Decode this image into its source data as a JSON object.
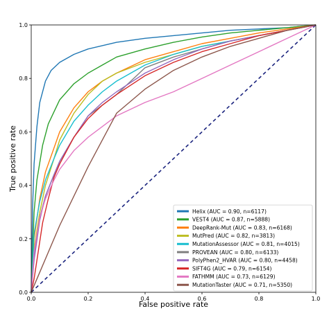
{
  "chart_data": {
    "type": "line",
    "title": "",
    "xlabel": "False positive rate",
    "ylabel": "True positive rate",
    "xlim": [
      0,
      1
    ],
    "ylim": [
      0,
      1
    ],
    "xticks": [
      "0.0",
      "0.2",
      "0.4",
      "0.6",
      "0.8",
      "1.0"
    ],
    "yticks": [
      "0.0",
      "0.2",
      "0.4",
      "0.6",
      "0.8",
      "1.0"
    ],
    "grid": false,
    "legend_position": "lower-right",
    "diagonal": {
      "color": "#1a237e",
      "style": "dashed",
      "x": [
        0,
        1
      ],
      "y": [
        0,
        1
      ]
    },
    "series": [
      {
        "name": "Helix (AUC = 0.90, n=6117)",
        "color": "#1f77b4",
        "x": [
          0,
          0.005,
          0.01,
          0.02,
          0.03,
          0.05,
          0.07,
          0.1,
          0.15,
          0.2,
          0.3,
          0.4,
          0.5,
          0.6,
          0.7,
          0.8,
          0.9,
          1.0
        ],
        "y": [
          0,
          0.32,
          0.48,
          0.62,
          0.71,
          0.79,
          0.83,
          0.86,
          0.89,
          0.91,
          0.935,
          0.95,
          0.96,
          0.97,
          0.98,
          0.985,
          0.99,
          1.0
        ]
      },
      {
        "name": "VEST4 (AUC = 0.87, n=5888)",
        "color": "#2ca02c",
        "x": [
          0,
          0.01,
          0.02,
          0.04,
          0.06,
          0.1,
          0.15,
          0.2,
          0.25,
          0.3,
          0.4,
          0.5,
          0.6,
          0.7,
          0.8,
          0.9,
          1.0
        ],
        "y": [
          0,
          0.3,
          0.42,
          0.55,
          0.63,
          0.72,
          0.78,
          0.82,
          0.85,
          0.88,
          0.91,
          0.935,
          0.955,
          0.97,
          0.98,
          0.99,
          1.0
        ]
      },
      {
        "name": "DeepRank-Mut (AUC = 0.83, n=6168)",
        "color": "#ff7f0e",
        "x": [
          0,
          0.01,
          0.03,
          0.05,
          0.08,
          0.1,
          0.15,
          0.2,
          0.25,
          0.3,
          0.4,
          0.5,
          0.6,
          0.7,
          0.8,
          0.9,
          1.0
        ],
        "y": [
          0,
          0.2,
          0.35,
          0.45,
          0.54,
          0.6,
          0.69,
          0.75,
          0.79,
          0.82,
          0.87,
          0.9,
          0.93,
          0.95,
          0.97,
          0.985,
          1.0
        ]
      },
      {
        "name": "MutPred (AUC = 0.82, n=3813)",
        "color": "#bcbd22",
        "x": [
          0,
          0.01,
          0.03,
          0.05,
          0.08,
          0.1,
          0.15,
          0.2,
          0.25,
          0.3,
          0.4,
          0.5,
          0.6,
          0.7,
          0.8,
          0.9,
          1.0
        ],
        "y": [
          0,
          0.16,
          0.3,
          0.4,
          0.5,
          0.57,
          0.67,
          0.74,
          0.79,
          0.82,
          0.86,
          0.89,
          0.92,
          0.94,
          0.96,
          0.98,
          1.0
        ]
      },
      {
        "name": "MutationAssessor (AUC = 0.81, n=4015)",
        "color": "#17becf",
        "x": [
          0,
          0.01,
          0.03,
          0.05,
          0.08,
          0.1,
          0.15,
          0.2,
          0.25,
          0.3,
          0.4,
          0.5,
          0.6,
          0.7,
          0.8,
          0.9,
          1.0
        ],
        "y": [
          0,
          0.22,
          0.34,
          0.42,
          0.5,
          0.55,
          0.64,
          0.7,
          0.75,
          0.79,
          0.85,
          0.89,
          0.92,
          0.94,
          0.96,
          0.98,
          1.0
        ]
      },
      {
        "name": "PROVEAN (AUC = 0.80, n=6133)",
        "color": "#7f7f7f",
        "x": [
          0,
          0.01,
          0.03,
          0.05,
          0.08,
          0.1,
          0.15,
          0.2,
          0.25,
          0.3,
          0.35,
          0.4,
          0.5,
          0.6,
          0.7,
          0.8,
          0.9,
          1.0
        ],
        "y": [
          0,
          0.14,
          0.28,
          0.36,
          0.44,
          0.49,
          0.58,
          0.66,
          0.7,
          0.74,
          0.79,
          0.84,
          0.88,
          0.91,
          0.94,
          0.96,
          0.98,
          1.0
        ]
      },
      {
        "name": "PolyPhen2_HVAR (AUC = 0.80, n=4458)",
        "color": "#9467bd",
        "x": [
          0,
          0.01,
          0.03,
          0.05,
          0.08,
          0.1,
          0.15,
          0.2,
          0.25,
          0.3,
          0.4,
          0.5,
          0.6,
          0.7,
          0.8,
          0.9,
          1.0
        ],
        "y": [
          0,
          0.12,
          0.27,
          0.36,
          0.44,
          0.49,
          0.58,
          0.66,
          0.71,
          0.75,
          0.82,
          0.87,
          0.91,
          0.94,
          0.96,
          0.98,
          1.0
        ]
      },
      {
        "name": "SIFT4G (AUC = 0.79, n=6154)",
        "color": "#d62728",
        "x": [
          0,
          0.01,
          0.02,
          0.04,
          0.06,
          0.08,
          0.1,
          0.15,
          0.2,
          0.25,
          0.3,
          0.4,
          0.5,
          0.6,
          0.7,
          0.8,
          0.9,
          1.0
        ],
        "y": [
          0,
          0.05,
          0.12,
          0.26,
          0.35,
          0.43,
          0.48,
          0.58,
          0.65,
          0.7,
          0.74,
          0.81,
          0.86,
          0.9,
          0.93,
          0.96,
          0.98,
          1.0
        ]
      },
      {
        "name": "FATHMM (AUC = 0.73, n=6129)",
        "color": "#e377c2",
        "x": [
          0,
          0.01,
          0.03,
          0.05,
          0.08,
          0.1,
          0.15,
          0.2,
          0.3,
          0.4,
          0.5,
          0.6,
          0.7,
          0.8,
          0.9,
          1.0
        ],
        "y": [
          0,
          0.15,
          0.28,
          0.35,
          0.42,
          0.46,
          0.53,
          0.58,
          0.66,
          0.71,
          0.75,
          0.8,
          0.85,
          0.9,
          0.95,
          1.0
        ]
      },
      {
        "name": "MutationTaster (AUC = 0.71, n=5350)",
        "color": "#8c564b",
        "x": [
          0,
          0.0,
          0.02,
          0.06,
          0.1,
          0.2,
          0.3,
          0.4,
          0.5,
          0.6,
          0.7,
          0.8,
          0.9,
          1.0
        ],
        "y": [
          0,
          0.0,
          0.05,
          0.15,
          0.25,
          0.47,
          0.67,
          0.76,
          0.83,
          0.88,
          0.92,
          0.95,
          0.98,
          1.0
        ]
      }
    ]
  }
}
